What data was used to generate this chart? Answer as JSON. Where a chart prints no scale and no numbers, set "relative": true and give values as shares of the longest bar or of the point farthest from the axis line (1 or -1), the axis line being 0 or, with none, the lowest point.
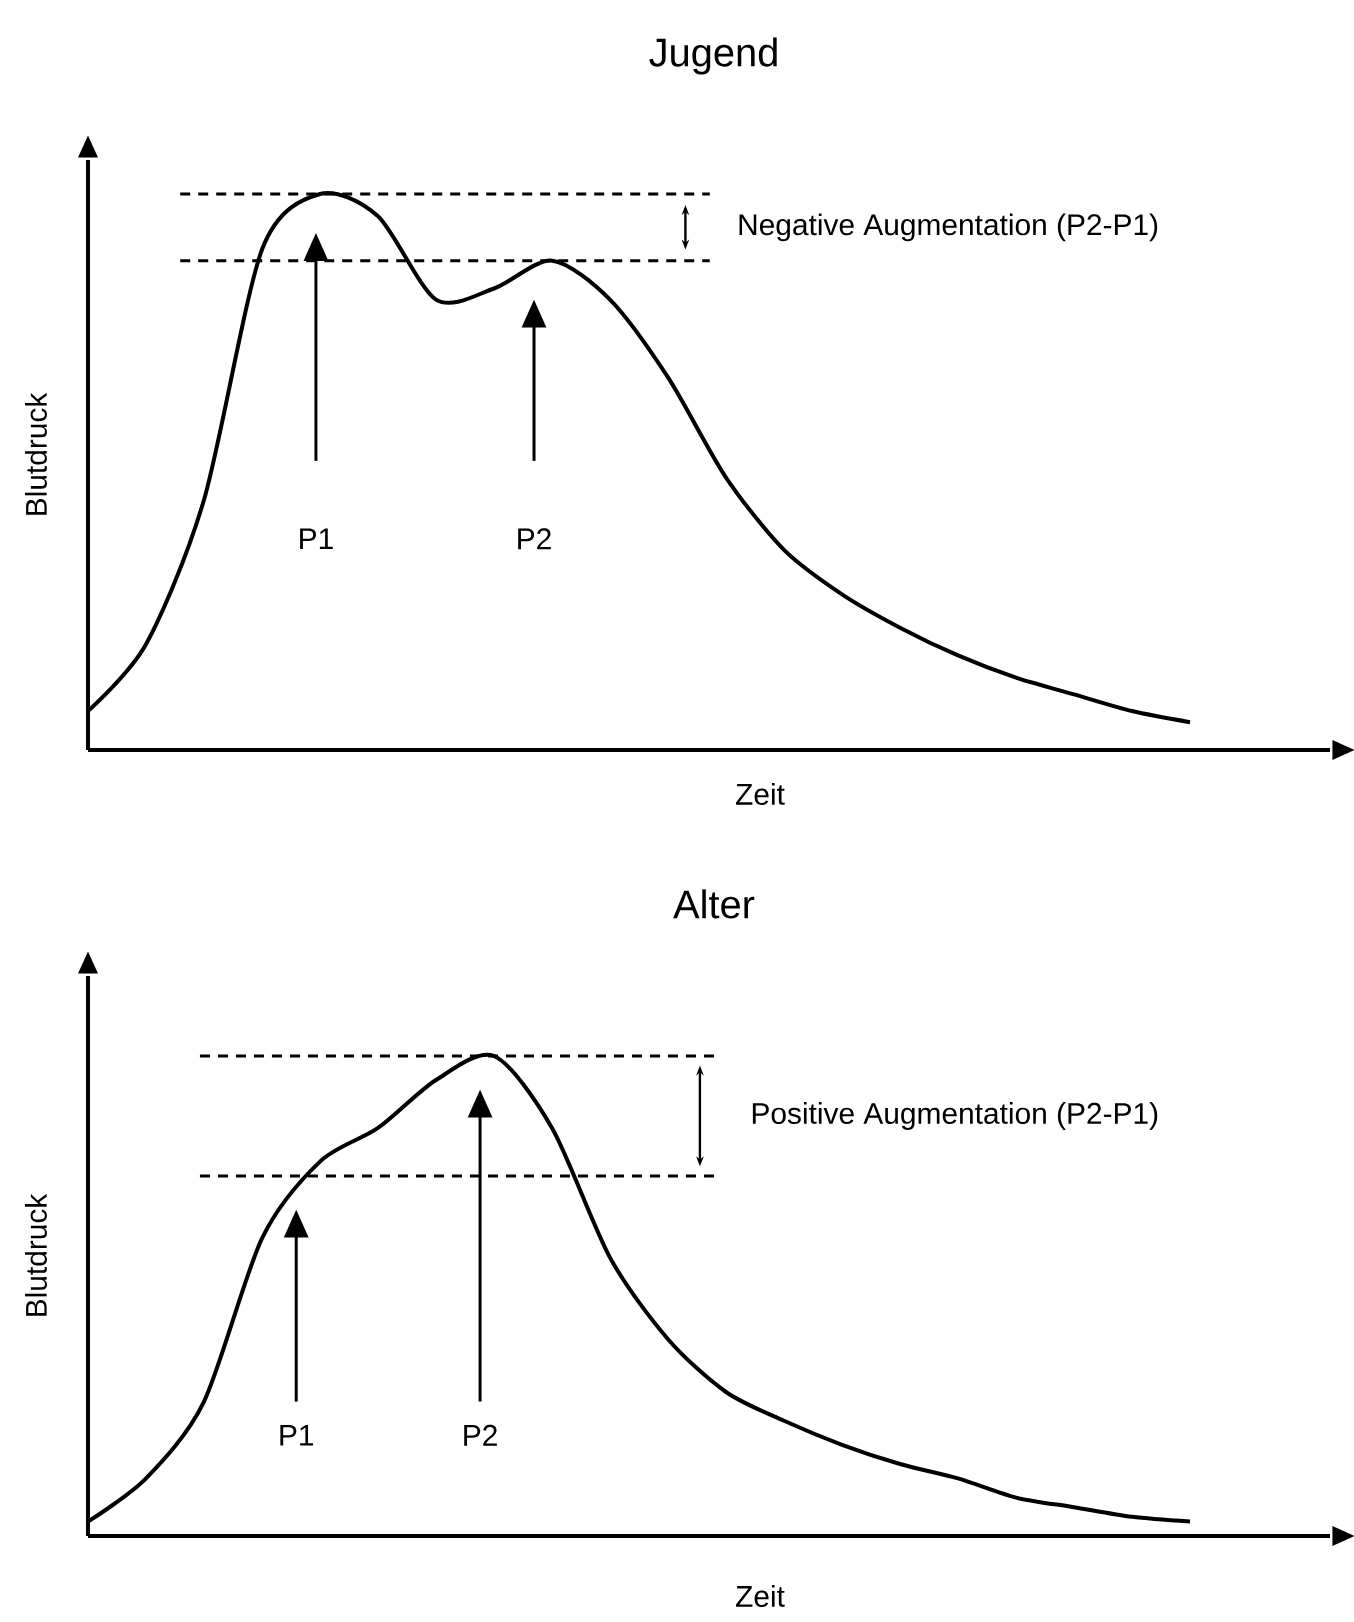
{
  "chart_data": [
    {
      "type": "line",
      "title": "Jugend",
      "xlabel": "Zeit",
      "ylabel": "Blutdruck",
      "relative": true,
      "categories": [
        null,
        null,
        null,
        null,
        null,
        null,
        null,
        null,
        null,
        null,
        null,
        null,
        null,
        null,
        null,
        null,
        null,
        null,
        null,
        null,
        null,
        null
      ],
      "series": [
        {
          "color": "#000000",
          "values": [
            0.07,
            0.19,
            0.45,
            0.9,
            1.0,
            0.96,
            0.81,
            0.83,
            0.88,
            0.81,
            0.67,
            0.49,
            0.36,
            0.28,
            0.22,
            0.17,
            0.13,
            0.1,
            0.07,
            0.05,
            null,
            null
          ]
        }
      ],
      "ref_lines": [
        {
          "axis": "y",
          "value": 1.0,
          "line_style": "dashed",
          "color": "#000000"
        },
        {
          "axis": "y",
          "value": 0.88,
          "line_style": "dashed",
          "color": "#000000"
        }
      ],
      "annotations": [
        "P1",
        "P2",
        "Negative Augmentation (P2-P1)"
      ]
    },
    {
      "type": "line",
      "title": "Alter",
      "xlabel": "Zeit",
      "ylabel": "Blutdruck",
      "relative": true,
      "categories": [
        null,
        null,
        null,
        null,
        null,
        null,
        null,
        null,
        null,
        null,
        null,
        null,
        null,
        null,
        null,
        null,
        null,
        null,
        null,
        null,
        null,
        null
      ],
      "series": [
        {
          "color": "#000000",
          "values": [
            0.03,
            0.12,
            0.28,
            0.62,
            0.78,
            0.85,
            0.95,
            1.0,
            0.85,
            0.58,
            0.41,
            0.3,
            0.24,
            0.19,
            0.15,
            0.12,
            0.08,
            0.06,
            0.04,
            0.03,
            null,
            null
          ]
        }
      ],
      "ref_lines": [
        {
          "axis": "y",
          "value": 1.0,
          "line_style": "dashed",
          "color": "#000000"
        },
        {
          "axis": "y",
          "value": 0.75,
          "line_style": "dashed",
          "color": "#000000"
        }
      ],
      "annotations": [
        "P1",
        "P2",
        "Positive Augmentation (P2-P1)"
      ]
    }
  ]
}
